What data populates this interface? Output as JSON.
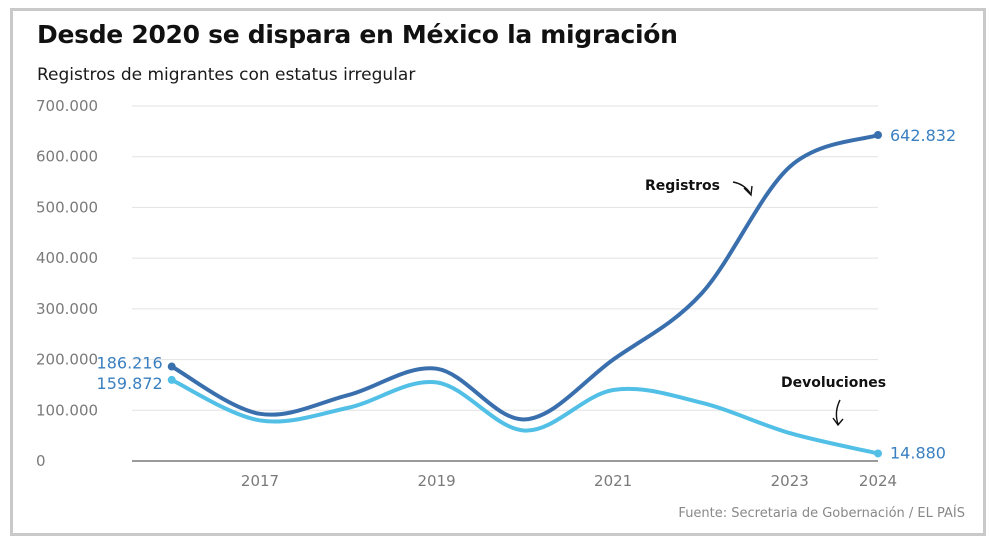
{
  "header": {
    "title": "Desde 2020 se dispara en México la migración",
    "subtitle": "Registros de migrantes con estatus irregular"
  },
  "footer": {
    "source": "Fuente: Secretaria de Gobernación / EL PAÍS"
  },
  "colors": {
    "registros": "#3a6fae",
    "devoluciones": "#52c0e6",
    "grid": "#e2e2e2",
    "axis": "#9a9a9a",
    "data_label": "#3a7fc0"
  },
  "chart_data": {
    "type": "line",
    "title": "Desde 2020 se dispara en México la migración",
    "subtitle": "Registros de migrantes con estatus irregular",
    "x": [
      2016,
      2017,
      2018,
      2019,
      2020,
      2021,
      2022,
      2023,
      2024
    ],
    "xticks": [
      2017,
      2019,
      2021,
      2023,
      2024
    ],
    "ylim": [
      0,
      700000
    ],
    "yticks": [
      0,
      100000,
      200000,
      300000,
      400000,
      500000,
      600000,
      700000
    ],
    "ytick_labels": [
      "0",
      "100.000",
      "200.000",
      "300.000",
      "400.000",
      "500.000",
      "600.000",
      "700.000"
    ],
    "grid": true,
    "series": [
      {
        "name": "Registros",
        "values": [
          186216,
          93000,
          130000,
          182000,
          82000,
          200000,
          330000,
          580000,
          642832
        ]
      },
      {
        "name": "Devoluciones",
        "values": [
          159872,
          80000,
          105000,
          155000,
          60000,
          140000,
          115000,
          55000,
          14880
        ]
      }
    ],
    "labels": {
      "registros_start": "186.216",
      "devoluciones_start": "159.872",
      "registros_end": "642.832",
      "devoluciones_end": "14.880"
    }
  }
}
